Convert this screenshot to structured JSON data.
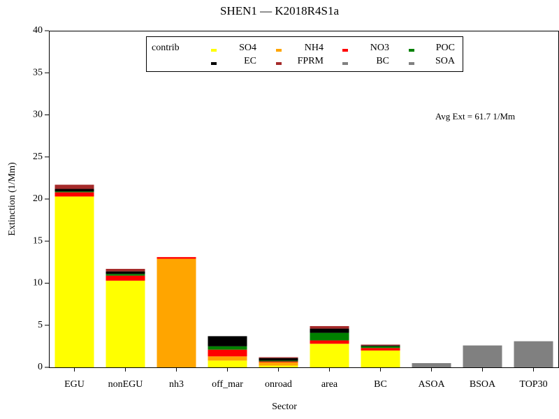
{
  "chart_data": {
    "type": "stacked-bar",
    "title": "SHEN1 — K2018R4S1a",
    "x_label": "Sector",
    "y_label": "Extinction (1/Mm)",
    "annotation": "Avg Ext =  61.7 1/Mm",
    "legend_title": "contrib",
    "categories": [
      "EGU",
      "nonEGU",
      "nh3",
      "off_mar",
      "onroad",
      "area",
      "BC",
      "ASOA",
      "BSOA",
      "TOP30"
    ],
    "series": [
      {
        "name": "SO4",
        "color": "#ffff00",
        "values": [
          20.3,
          10.3,
          0,
          0.8,
          0.2,
          2.8,
          2.0,
          0,
          0,
          0
        ]
      },
      {
        "name": "NH4",
        "color": "#ffa500",
        "values": [
          0,
          0,
          12.9,
          0.5,
          0.4,
          0,
          0,
          0,
          0,
          0
        ]
      },
      {
        "name": "NO3",
        "color": "#ff0000",
        "values": [
          0.5,
          0.6,
          0.2,
          0.8,
          0.1,
          0.4,
          0.3,
          0,
          0,
          0
        ]
      },
      {
        "name": "POC",
        "color": "#008000",
        "values": [
          0.1,
          0.2,
          0,
          0.4,
          0.1,
          0.9,
          0.2,
          0,
          0,
          0
        ]
      },
      {
        "name": "EC",
        "color": "#000000",
        "values": [
          0.3,
          0.3,
          0,
          1.2,
          0.3,
          0.5,
          0.1,
          0,
          0,
          0
        ]
      },
      {
        "name": "FPRM",
        "color": "#a52a2a",
        "values": [
          0.5,
          0.3,
          0,
          0,
          0.1,
          0.3,
          0.1,
          0,
          0,
          0
        ]
      },
      {
        "name": "BC",
        "color": "#808080",
        "values": [
          0,
          0,
          0,
          0,
          0,
          0,
          0,
          0,
          0,
          0
        ]
      },
      {
        "name": "SOA",
        "color": "#808080",
        "values": [
          0,
          0,
          0,
          0,
          0,
          0,
          0,
          0.5,
          2.6,
          3.1
        ]
      }
    ],
    "ylim": [
      0,
      40
    ],
    "yticks": [
      0,
      5,
      10,
      15,
      20,
      25,
      30,
      35,
      40
    ]
  }
}
